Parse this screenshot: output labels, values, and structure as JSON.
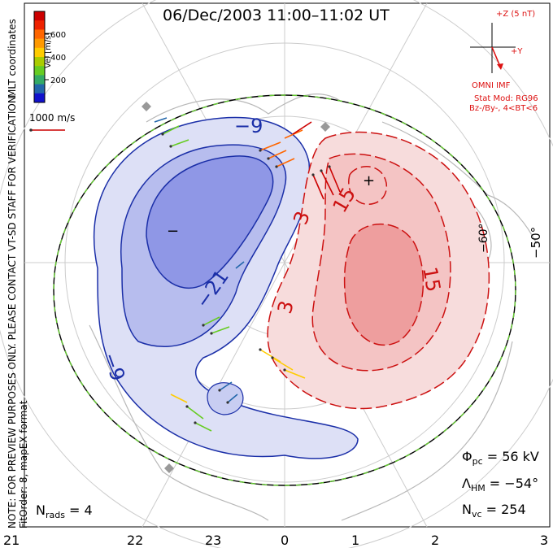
{
  "title": "06/Dec/2003 11:00–11:02 UT",
  "vel_scale": {
    "label": "Vel [m/s]",
    "ticks": [
      "600",
      "400",
      "200"
    ],
    "colors": [
      "#cc0000",
      "#ee2200",
      "#ff6600",
      "#ff9900",
      "#ffcc00",
      "#aacc00",
      "#66cc22",
      "#33aa66",
      "#2266aa",
      "#1111cc"
    ]
  },
  "coord_label": "MLT coordinates",
  "ref_vector": "1000 m/s",
  "note": "NOTE: FOR PREVIEW PURPOSES ONLY. PLEASE CONTACT VT-SD STAFF FOR VERIFICATION.",
  "fit_order": "FitOrder: 8, mapEX format",
  "imf": {
    "z_label": "+Z (5 nT)",
    "y_label": "+Y",
    "caption": "OMNI IMF",
    "stat_mod": "Stat Mod: RG96",
    "condition": "Bz-/By-, 4<BT<6"
  },
  "stats": {
    "phi_pc": "Φpc = 56 kV",
    "phi_symbol": "Φ",
    "phi_sub": "pc",
    "phi_value": " = 56 kV",
    "lambda_symbol": "Λ",
    "lambda_sub": "HM",
    "lambda_value": " = −54°",
    "n_symbol": "N",
    "n_sub": "vc",
    "n_value": " = 254"
  },
  "nrads": {
    "symbol": "N",
    "sub": "rads",
    "value": " = 4"
  },
  "mlt_ticks": [
    "21",
    "22",
    "23",
    "0",
    "1",
    "2",
    "3"
  ],
  "lat_labels": [
    "−50°",
    "−60°"
  ],
  "contour_labels": {
    "neg": [
      "−9",
      "−21",
      "−9",
      "−"
    ],
    "pos": [
      "3",
      "15",
      "15",
      "3",
      "+"
    ]
  },
  "colors": {
    "negative_contour": "#1b2fa8",
    "positive_contour": "#cc1111",
    "imf_red": "#dd1111",
    "boundary_green": "#66cc33"
  }
}
